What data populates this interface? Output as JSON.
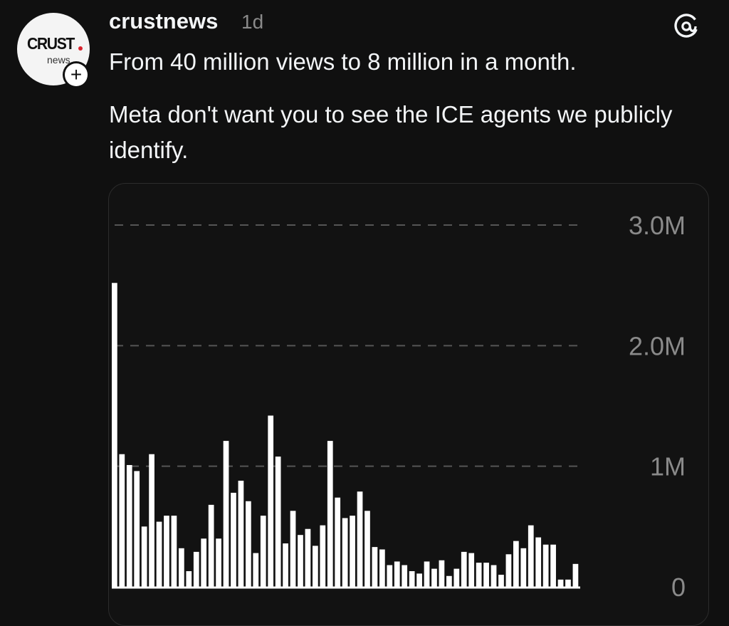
{
  "post": {
    "username": "crustnews",
    "time": "1d",
    "text_line1": "From 40 million views to 8 million in a month.",
    "text_para2": "Meta don't want you to see the ICE agents we publicly identify.",
    "avatar": {
      "logo_text": "CRUST",
      "logo_sub": "news",
      "follow_glyph": "+"
    },
    "icons": {
      "threads": "threads-logo-icon",
      "follow": "plus-icon"
    }
  },
  "colors": {
    "background": "#101010",
    "text": "#f3f5f7",
    "muted": "#8a8a8a",
    "bars": "#ffffff",
    "gridline": "#555555",
    "logo_dot": "#d9232e"
  },
  "chart_data": {
    "type": "bar",
    "ylim": [
      0,
      3000000
    ],
    "grid": true,
    "y_ticks": [
      {
        "value": 3000000,
        "label": "3.0M"
      },
      {
        "value": 2000000,
        "label": "2.0M"
      },
      {
        "value": 1000000,
        "label": "1M"
      },
      {
        "value": 0,
        "label": "0"
      }
    ],
    "values": [
      2520000,
      1100000,
      1010000,
      960000,
      500000,
      1100000,
      540000,
      590000,
      590000,
      320000,
      130000,
      290000,
      400000,
      680000,
      400000,
      1210000,
      780000,
      880000,
      710000,
      280000,
      590000,
      1420000,
      1080000,
      360000,
      630000,
      430000,
      480000,
      340000,
      510000,
      1210000,
      740000,
      570000,
      590000,
      790000,
      630000,
      330000,
      310000,
      180000,
      210000,
      180000,
      130000,
      110000,
      210000,
      150000,
      220000,
      90000,
      150000,
      290000,
      280000,
      200000,
      200000,
      180000,
      100000,
      270000,
      380000,
      320000,
      510000,
      410000,
      350000,
      350000,
      60000,
      60000,
      190000
    ]
  }
}
